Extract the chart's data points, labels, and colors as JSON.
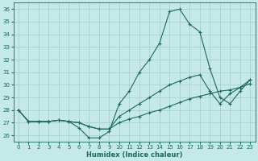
{
  "xlabel": "Humidex (Indice chaleur)",
  "bg_color": "#c5e8e8",
  "grid_color": "#aacfcf",
  "line_color": "#1a6b5a",
  "xlim": [
    -0.5,
    23.5
  ],
  "ylim": [
    25.5,
    36.5
  ],
  "yticks": [
    26,
    27,
    28,
    29,
    30,
    31,
    32,
    33,
    34,
    35,
    36
  ],
  "xticks": [
    0,
    1,
    2,
    3,
    4,
    5,
    6,
    7,
    8,
    9,
    10,
    11,
    12,
    13,
    14,
    15,
    16,
    17,
    18,
    19,
    20,
    21,
    22,
    23
  ],
  "series1_x": [
    0,
    1,
    2,
    3,
    4,
    5,
    6,
    7,
    8,
    9,
    10,
    11,
    12,
    13,
    14,
    15,
    16,
    17,
    18,
    19,
    20,
    21,
    22,
    23
  ],
  "series1_y": [
    28.0,
    27.1,
    27.1,
    27.1,
    27.2,
    27.1,
    27.0,
    26.7,
    26.5,
    26.5,
    27.0,
    27.3,
    27.5,
    27.8,
    28.0,
    28.3,
    28.6,
    28.9,
    29.1,
    29.3,
    29.5,
    29.6,
    29.8,
    30.1
  ],
  "series2_x": [
    0,
    1,
    2,
    3,
    4,
    5,
    6,
    7,
    8,
    9,
    10,
    11,
    12,
    13,
    14,
    15,
    16,
    17,
    18,
    19,
    20,
    21,
    22,
    23
  ],
  "series2_y": [
    28.0,
    27.1,
    27.1,
    27.1,
    27.2,
    27.1,
    27.0,
    26.7,
    26.5,
    26.5,
    27.5,
    28.0,
    28.5,
    29.0,
    29.5,
    30.0,
    30.3,
    30.6,
    30.8,
    29.5,
    28.5,
    29.3,
    29.8,
    30.4
  ],
  "series3_x": [
    0,
    1,
    2,
    3,
    4,
    5,
    6,
    7,
    8,
    9,
    10,
    11,
    12,
    13,
    14,
    15,
    16,
    17,
    18,
    19,
    20,
    21,
    22,
    23
  ],
  "series3_y": [
    28.0,
    27.1,
    27.1,
    27.1,
    27.2,
    27.1,
    26.6,
    25.8,
    25.8,
    26.3,
    28.5,
    29.5,
    31.0,
    32.0,
    33.3,
    35.8,
    36.0,
    34.8,
    34.2,
    31.3,
    29.0,
    28.5,
    29.5,
    30.4
  ]
}
